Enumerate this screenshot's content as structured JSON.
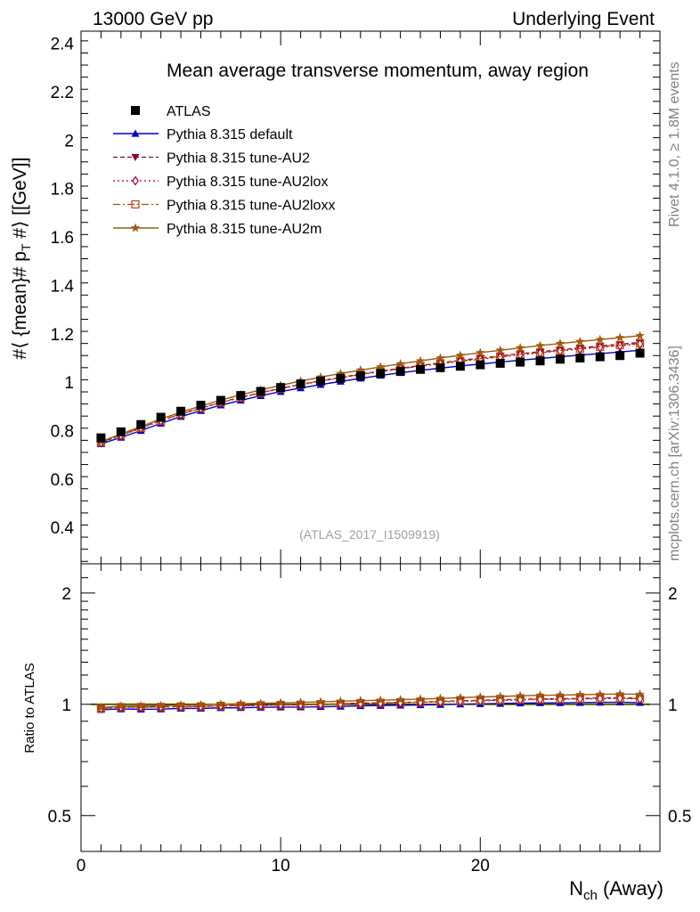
{
  "header": {
    "left": "13000 GeV pp",
    "right": "Underlying Event"
  },
  "side_labels": {
    "rivet": "Rivet 4.1.0, ≥ 1.8M events",
    "mcplots": "mcplots.cern.ch [arXiv:1306.3436]"
  },
  "chart_data": {
    "type": "line",
    "title": "Mean average transverse momentum, away region",
    "watermark": "(ATLAS_2017_I1509919)",
    "xlabel_main": "N",
    "xlabel_sub": "ch",
    "xlabel_suffix": " (Away)",
    "ylabel": "#⟨ {mean}# p_T #⟩ [[GeV]]",
    "ylabel_parts": {
      "a": "#⟨ {mean}# p",
      "b": "T",
      "c": " #⟩ [[GeV]]"
    },
    "ratio_ylabel": "Ratio to ATLAS",
    "xlim": [
      0,
      29
    ],
    "ylim": [
      0.25,
      2.45
    ],
    "ratio_ylim": [
      0.4,
      2.4
    ],
    "x_ticks": [
      0,
      10,
      20
    ],
    "x_tick_labels": [
      "0",
      "10",
      "20"
    ],
    "y_ticks": [
      0.4,
      0.6,
      0.8,
      1.0,
      1.2,
      1.4,
      1.6,
      1.8,
      2.0,
      2.2,
      2.4
    ],
    "y_tick_labels": [
      "0.4",
      "0.6",
      "0.8",
      "1",
      "1.2",
      "1.4",
      "1.6",
      "1.8",
      "2",
      "2.2",
      "2.4"
    ],
    "ratio_ticks": [
      0.5,
      1,
      2
    ],
    "ratio_tick_labels": [
      "0.5",
      "1",
      "2"
    ],
    "x": [
      1,
      2,
      3,
      4,
      5,
      6,
      7,
      8,
      9,
      10,
      11,
      12,
      13,
      14,
      15,
      16,
      17,
      18,
      19,
      20,
      21,
      22,
      23,
      24,
      25,
      26,
      27,
      28
    ],
    "data": {
      "name": "ATLAS",
      "values": [
        0.77,
        0.795,
        0.825,
        0.855,
        0.88,
        0.905,
        0.925,
        0.945,
        0.962,
        0.978,
        0.993,
        1.005,
        1.016,
        1.026,
        1.036,
        1.045,
        1.053,
        1.06,
        1.066,
        1.072,
        1.078,
        1.083,
        1.088,
        1.095,
        1.1,
        1.105,
        1.11,
        1.12
      ]
    },
    "series": [
      {
        "name": "Pythia 8.315 default",
        "color": "#0000cc",
        "marker": "triangle-up",
        "dash": "",
        "width": 1.4,
        "values": [
          0.745,
          0.772,
          0.8,
          0.83,
          0.858,
          0.882,
          0.905,
          0.925,
          0.944,
          0.961,
          0.976,
          0.99,
          1.003,
          1.016,
          1.028,
          1.039,
          1.049,
          1.058,
          1.067,
          1.075,
          1.083,
          1.091,
          1.098,
          1.105,
          1.112,
          1.118,
          1.125,
          1.132
        ]
      },
      {
        "name": "Pythia 8.315 tune-AU2",
        "color": "#8b0032",
        "marker": "triangle-down",
        "dash": "5,3",
        "width": 1.2,
        "values": [
          0.752,
          0.782,
          0.812,
          0.842,
          0.869,
          0.894,
          0.917,
          0.938,
          0.957,
          0.975,
          0.991,
          1.006,
          1.02,
          1.034,
          1.046,
          1.058,
          1.069,
          1.08,
          1.09,
          1.1,
          1.109,
          1.118,
          1.126,
          1.134,
          1.142,
          1.15,
          1.157,
          1.165
        ]
      },
      {
        "name": "Pythia 8.315 tune-AU2lox",
        "color": "#a0002a",
        "marker": "diamond-open",
        "dash": "2,3",
        "width": 1.2,
        "values": [
          0.75,
          0.78,
          0.81,
          0.84,
          0.867,
          0.892,
          0.915,
          0.936,
          0.955,
          0.973,
          0.989,
          1.004,
          1.018,
          1.031,
          1.043,
          1.055,
          1.066,
          1.076,
          1.086,
          1.095,
          1.104,
          1.113,
          1.121,
          1.129,
          1.137,
          1.144,
          1.151,
          1.158
        ]
      },
      {
        "name": "Pythia 8.315 tune-AU2loxx",
        "color": "#c04010",
        "marker": "square-open",
        "dash": "8,3,2,3",
        "width": 1.2,
        "values": [
          0.751,
          0.781,
          0.811,
          0.841,
          0.868,
          0.893,
          0.916,
          0.937,
          0.956,
          0.974,
          0.99,
          1.005,
          1.019,
          1.032,
          1.044,
          1.056,
          1.067,
          1.078,
          1.088,
          1.097,
          1.106,
          1.115,
          1.123,
          1.131,
          1.139,
          1.146,
          1.153,
          1.16
        ]
      },
      {
        "name": "Pythia 8.315 tune-AU2m",
        "color": "#9c5a10",
        "marker": "star",
        "dash": "",
        "width": 1.4,
        "values": [
          0.755,
          0.786,
          0.817,
          0.848,
          0.876,
          0.902,
          0.926,
          0.948,
          0.968,
          0.987,
          1.005,
          1.021,
          1.036,
          1.05,
          1.063,
          1.076,
          1.088,
          1.1,
          1.111,
          1.122,
          1.132,
          1.142,
          1.151,
          1.16,
          1.168,
          1.176,
          1.184,
          1.192
        ]
      }
    ]
  }
}
